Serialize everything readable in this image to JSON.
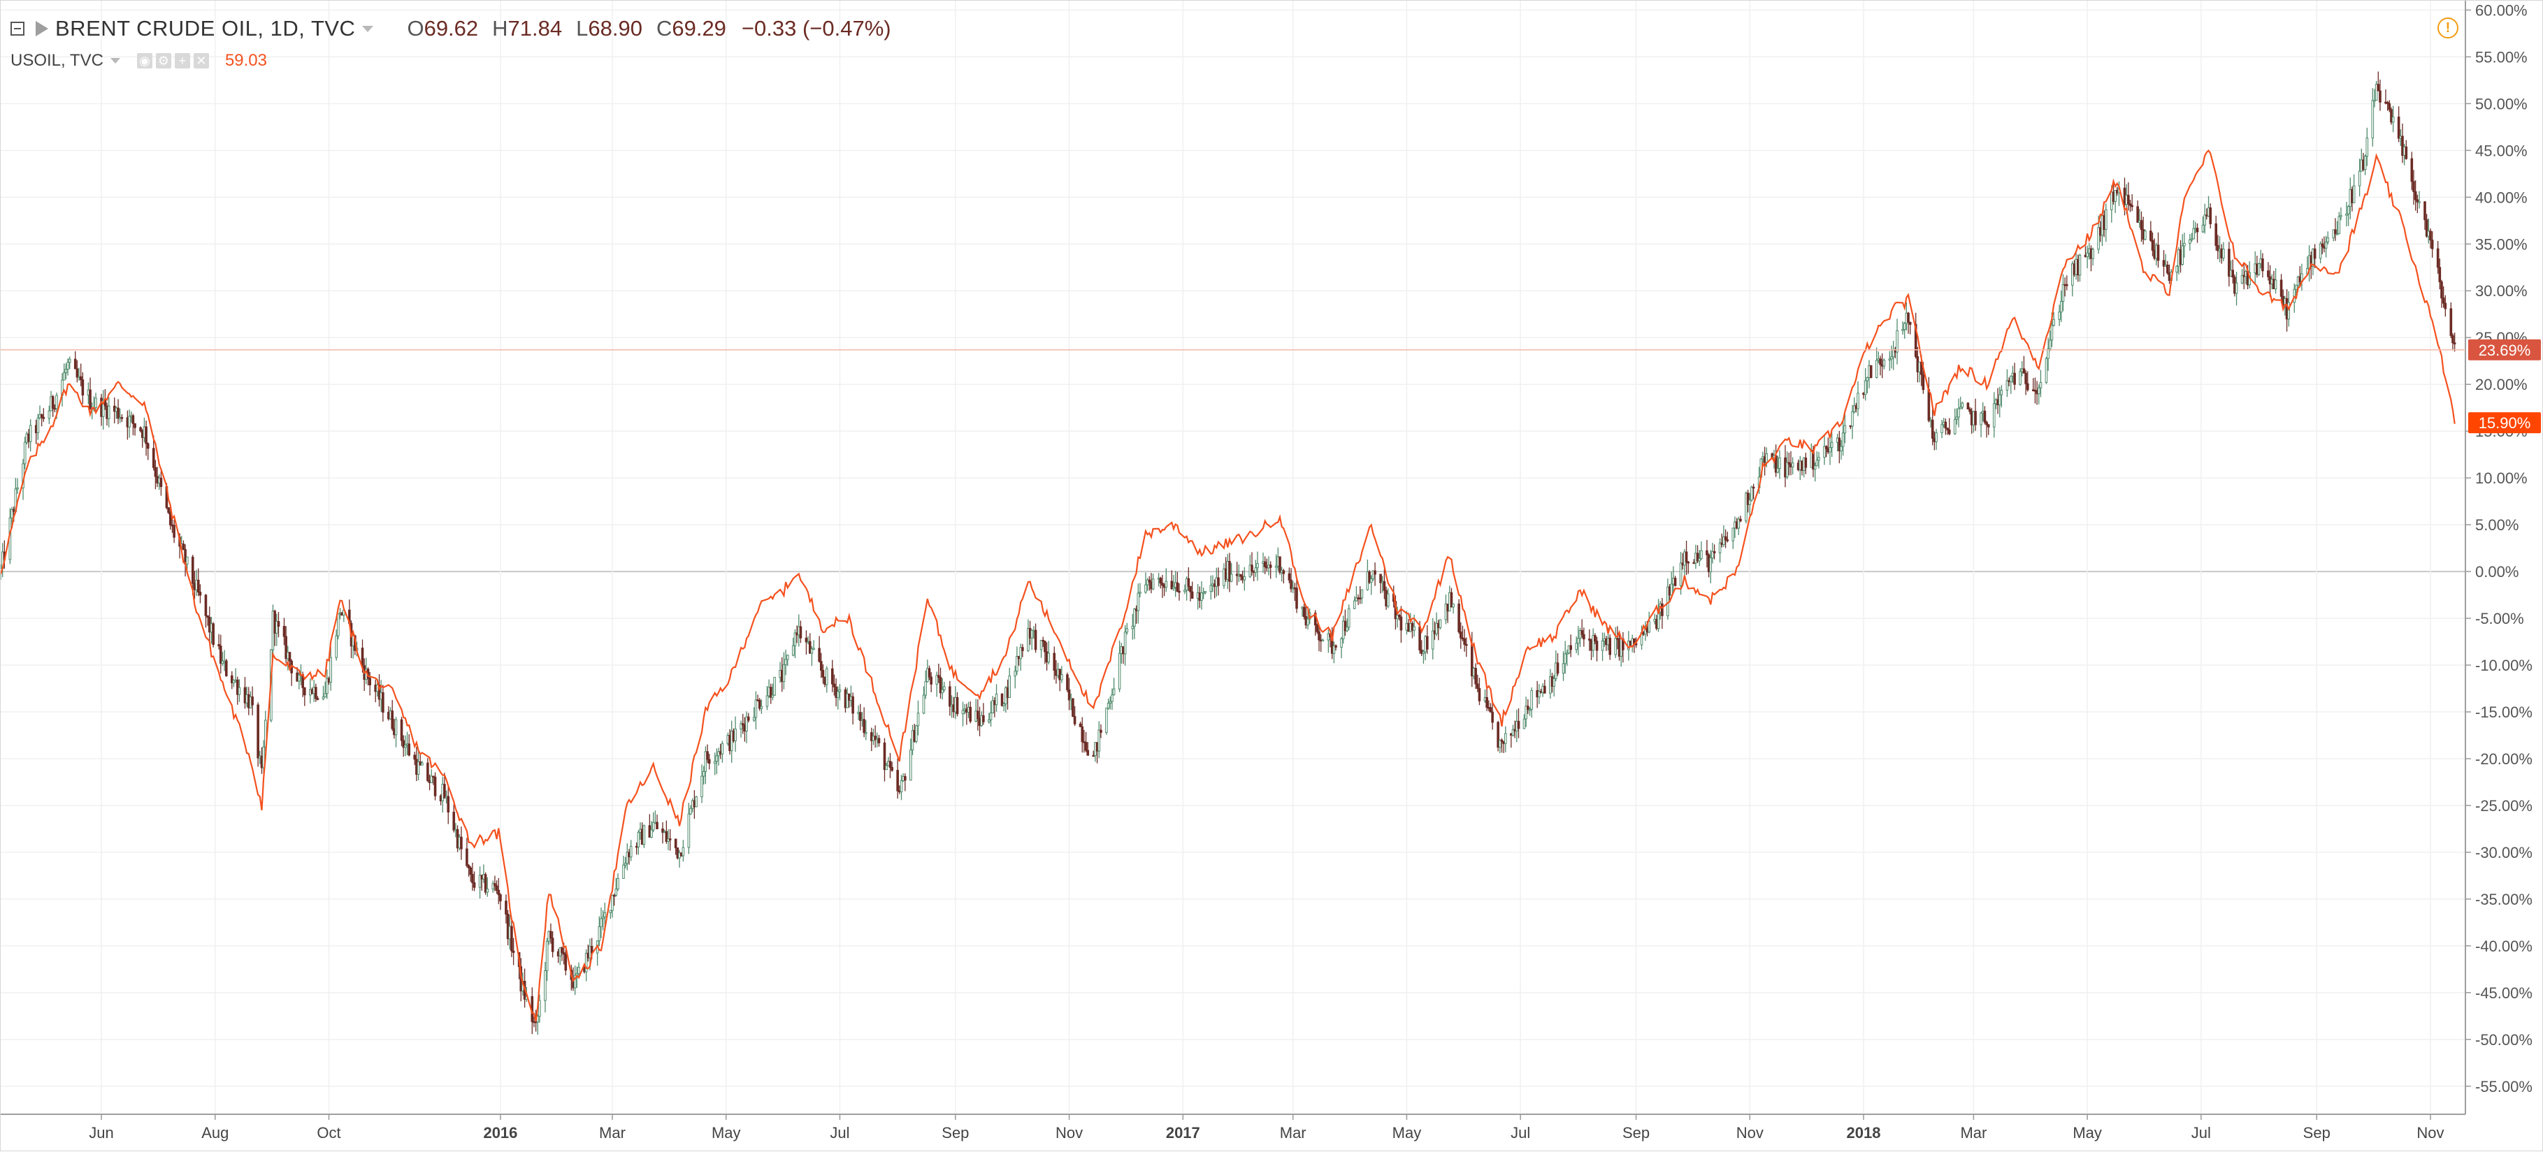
{
  "legend": {
    "symbol_title": "BRENT CRUDE OIL, 1D, TVC",
    "ohlc": [
      {
        "k": "O",
        "v": "69.62"
      },
      {
        "k": "H",
        "v": "71.84"
      },
      {
        "k": "L",
        "v": "68.90"
      },
      {
        "k": "C",
        "v": "69.29"
      }
    ],
    "change": "−0.33 (−0.47%)",
    "compare_symbol": "USOIL, TVC",
    "compare_value": "59.03"
  },
  "icons": [
    "collapse-icon",
    "flag-icon",
    "eye-icon",
    "settings-icon",
    "plus-icon",
    "close-icon",
    "warning-icon"
  ],
  "colors": {
    "up_candle_body": "#ffffff",
    "up_candle_wick": "#4f8a6b",
    "down_candle": "#6b2b24",
    "compare_line": "#f4511e",
    "grid": "#f0f0f0",
    "zero_line": "#c8c8c8",
    "price_line": "#f5b7a7",
    "brent_badge": "#d9553f",
    "usoil_badge": "#ff4500"
  },
  "chart_data": {
    "type": "line",
    "y_axis_unit": "%",
    "ylim": [
      -58,
      61
    ],
    "y_ticks": [
      "60.00%",
      "55.00%",
      "50.00%",
      "45.00%",
      "40.00%",
      "35.00%",
      "30.00%",
      "25.00%",
      "20.00%",
      "15.00%",
      "10.00%",
      "5.00%",
      "0.00%",
      "-5.00%",
      "-10.00%",
      "-15.00%",
      "-20.00%",
      "-25.00%",
      "-30.00%",
      "-35.00%",
      "-40.00%",
      "-45.00%",
      "-50.00%",
      "-55.00%"
    ],
    "x_ticks": [
      {
        "label": "Jun",
        "date": "2015-06-01",
        "bold": false
      },
      {
        "label": "Aug",
        "date": "2015-08-01",
        "bold": false
      },
      {
        "label": "Oct",
        "date": "2015-10-01",
        "bold": false
      },
      {
        "label": "2016",
        "date": "2016-01-01",
        "bold": true
      },
      {
        "label": "Mar",
        "date": "2016-03-01",
        "bold": false
      },
      {
        "label": "May",
        "date": "2016-05-01",
        "bold": false
      },
      {
        "label": "Jul",
        "date": "2016-07-01",
        "bold": false
      },
      {
        "label": "Sep",
        "date": "2016-09-01",
        "bold": false
      },
      {
        "label": "Nov",
        "date": "2016-11-01",
        "bold": false
      },
      {
        "label": "2017",
        "date": "2017-01-01",
        "bold": true
      },
      {
        "label": "Mar",
        "date": "2017-03-01",
        "bold": false
      },
      {
        "label": "May",
        "date": "2017-05-01",
        "bold": false
      },
      {
        "label": "Jul",
        "date": "2017-07-01",
        "bold": false
      },
      {
        "label": "Sep",
        "date": "2017-09-01",
        "bold": false
      },
      {
        "label": "Nov",
        "date": "2017-11-01",
        "bold": false
      },
      {
        "label": "2018",
        "date": "2018-01-01",
        "bold": true
      },
      {
        "label": "Mar",
        "date": "2018-03-01",
        "bold": false
      },
      {
        "label": "May",
        "date": "2018-05-01",
        "bold": false
      },
      {
        "label": "Jul",
        "date": "2018-07-01",
        "bold": false
      },
      {
        "label": "Sep",
        "date": "2018-09-01",
        "bold": false
      },
      {
        "label": "Nov",
        "date": "2018-11-01",
        "bold": false
      }
    ],
    "x_range": [
      "2015-04-08",
      "2018-11-16"
    ],
    "series": [
      {
        "name": "BRENT CRUDE OIL, 1D, TVC",
        "style": "candles",
        "last_label": "23.69%",
        "last_value": 23.69,
        "points": [
          [
            "2015-04-08",
            0
          ],
          [
            "2015-04-22",
            14
          ],
          [
            "2015-05-06",
            18
          ],
          [
            "2015-05-14",
            22
          ],
          [
            "2015-05-27",
            18
          ],
          [
            "2015-06-10",
            17
          ],
          [
            "2015-06-24",
            15
          ],
          [
            "2015-07-08",
            5
          ],
          [
            "2015-07-22",
            -2
          ],
          [
            "2015-08-05",
            -10
          ],
          [
            "2015-08-20",
            -14
          ],
          [
            "2015-08-26",
            -22
          ],
          [
            "2015-09-01",
            -5
          ],
          [
            "2015-09-15",
            -12
          ],
          [
            "2015-09-29",
            -13
          ],
          [
            "2015-10-07",
            -4
          ],
          [
            "2015-10-21",
            -11
          ],
          [
            "2015-11-04",
            -16
          ],
          [
            "2015-11-18",
            -21
          ],
          [
            "2015-12-02",
            -24
          ],
          [
            "2015-12-16",
            -33
          ],
          [
            "2015-12-31",
            -34
          ],
          [
            "2016-01-12",
            -44
          ],
          [
            "2016-01-20",
            -49
          ],
          [
            "2016-01-27",
            -39
          ],
          [
            "2016-02-10",
            -44
          ],
          [
            "2016-02-24",
            -38
          ],
          [
            "2016-03-09",
            -30
          ],
          [
            "2016-03-23",
            -27
          ],
          [
            "2016-04-06",
            -30
          ],
          [
            "2016-04-20",
            -20
          ],
          [
            "2016-05-04",
            -18
          ],
          [
            "2016-05-18",
            -14
          ],
          [
            "2016-06-01",
            -11
          ],
          [
            "2016-06-08",
            -6
          ],
          [
            "2016-06-22",
            -11
          ],
          [
            "2016-07-06",
            -14
          ],
          [
            "2016-07-20",
            -18
          ],
          [
            "2016-08-02",
            -24
          ],
          [
            "2016-08-17",
            -11
          ],
          [
            "2016-08-31",
            -14
          ],
          [
            "2016-09-14",
            -16
          ],
          [
            "2016-09-28",
            -13
          ],
          [
            "2016-10-10",
            -6
          ],
          [
            "2016-10-26",
            -11
          ],
          [
            "2016-11-14",
            -20
          ],
          [
            "2016-11-30",
            -8
          ],
          [
            "2016-12-12",
            -1
          ],
          [
            "2016-12-28",
            -1
          ],
          [
            "2017-01-11",
            -3
          ],
          [
            "2017-01-25",
            0
          ],
          [
            "2017-02-08",
            0
          ],
          [
            "2017-02-22",
            1
          ],
          [
            "2017-03-08",
            -5
          ],
          [
            "2017-03-22",
            -8
          ],
          [
            "2017-04-05",
            -3
          ],
          [
            "2017-04-12",
            0
          ],
          [
            "2017-04-26",
            -5
          ],
          [
            "2017-05-10",
            -8
          ],
          [
            "2017-05-24",
            -3
          ],
          [
            "2017-06-07",
            -12
          ],
          [
            "2017-06-21",
            -19
          ],
          [
            "2017-07-05",
            -14
          ],
          [
            "2017-07-19",
            -11
          ],
          [
            "2017-08-02",
            -7
          ],
          [
            "2017-08-16",
            -8
          ],
          [
            "2017-08-30",
            -8
          ],
          [
            "2017-09-13",
            -5
          ],
          [
            "2017-09-27",
            2
          ],
          [
            "2017-10-11",
            1
          ],
          [
            "2017-10-25",
            5
          ],
          [
            "2017-11-08",
            12
          ],
          [
            "2017-11-22",
            11
          ],
          [
            "2017-12-06",
            12
          ],
          [
            "2017-12-20",
            14
          ],
          [
            "2018-01-03",
            21
          ],
          [
            "2018-01-17",
            24
          ],
          [
            "2018-01-25",
            27
          ],
          [
            "2018-02-08",
            14
          ],
          [
            "2018-02-22",
            17
          ],
          [
            "2018-03-08",
            16
          ],
          [
            "2018-03-22",
            21
          ],
          [
            "2018-04-05",
            20
          ],
          [
            "2018-04-19",
            31
          ],
          [
            "2018-05-03",
            34
          ],
          [
            "2018-05-17",
            41
          ],
          [
            "2018-05-31",
            36
          ],
          [
            "2018-06-14",
            32
          ],
          [
            "2018-06-21",
            34
          ],
          [
            "2018-07-05",
            38
          ],
          [
            "2018-07-19",
            30
          ],
          [
            "2018-08-02",
            33
          ],
          [
            "2018-08-16",
            28
          ],
          [
            "2018-08-30",
            34
          ],
          [
            "2018-09-13",
            37
          ],
          [
            "2018-09-27",
            44
          ],
          [
            "2018-10-03",
            52
          ],
          [
            "2018-10-17",
            45
          ],
          [
            "2018-10-31",
            36
          ],
          [
            "2018-11-09",
            28
          ],
          [
            "2018-11-14",
            23.69
          ]
        ]
      },
      {
        "name": "USOIL, TVC",
        "style": "line",
        "last_label": "15.90%",
        "last_value": 15.9,
        "points": [
          [
            "2015-04-08",
            0
          ],
          [
            "2015-04-22",
            11
          ],
          [
            "2015-05-06",
            16
          ],
          [
            "2015-05-14",
            20
          ],
          [
            "2015-05-27",
            17
          ],
          [
            "2015-06-10",
            20
          ],
          [
            "2015-06-24",
            18
          ],
          [
            "2015-07-08",
            7
          ],
          [
            "2015-07-22",
            -4
          ],
          [
            "2015-08-05",
            -12
          ],
          [
            "2015-08-20",
            -20
          ],
          [
            "2015-08-26",
            -25
          ],
          [
            "2015-09-01",
            -9
          ],
          [
            "2015-09-15",
            -11
          ],
          [
            "2015-09-29",
            -11
          ],
          [
            "2015-10-07",
            -3
          ],
          [
            "2015-10-21",
            -11
          ],
          [
            "2015-11-04",
            -13
          ],
          [
            "2015-11-18",
            -19
          ],
          [
            "2015-12-02",
            -22
          ],
          [
            "2015-12-16",
            -29
          ],
          [
            "2015-12-31",
            -28
          ],
          [
            "2016-01-12",
            -43
          ],
          [
            "2016-01-20",
            -48
          ],
          [
            "2016-01-27",
            -34
          ],
          [
            "2016-02-10",
            -44
          ],
          [
            "2016-02-24",
            -40
          ],
          [
            "2016-03-09",
            -25
          ],
          [
            "2016-03-23",
            -21
          ],
          [
            "2016-04-06",
            -27
          ],
          [
            "2016-04-20",
            -15
          ],
          [
            "2016-05-04",
            -11
          ],
          [
            "2016-05-18",
            -4
          ],
          [
            "2016-06-01",
            -2
          ],
          [
            "2016-06-08",
            0
          ],
          [
            "2016-06-22",
            -6
          ],
          [
            "2016-07-06",
            -5
          ],
          [
            "2016-07-20",
            -13
          ],
          [
            "2016-08-02",
            -20
          ],
          [
            "2016-08-17",
            -3
          ],
          [
            "2016-08-31",
            -11
          ],
          [
            "2016-09-14",
            -13
          ],
          [
            "2016-09-28",
            -9
          ],
          [
            "2016-10-10",
            -1
          ],
          [
            "2016-10-26",
            -7
          ],
          [
            "2016-11-14",
            -15
          ],
          [
            "2016-11-30",
            -5
          ],
          [
            "2016-12-12",
            4
          ],
          [
            "2016-12-28",
            5
          ],
          [
            "2017-01-11",
            2
          ],
          [
            "2017-01-25",
            3
          ],
          [
            "2017-02-08",
            4
          ],
          [
            "2017-02-22",
            6
          ],
          [
            "2017-03-08",
            -4
          ],
          [
            "2017-03-22",
            -7
          ],
          [
            "2017-04-05",
            1
          ],
          [
            "2017-04-12",
            5
          ],
          [
            "2017-04-26",
            -4
          ],
          [
            "2017-05-10",
            -6
          ],
          [
            "2017-05-24",
            2
          ],
          [
            "2017-06-07",
            -9
          ],
          [
            "2017-06-21",
            -16
          ],
          [
            "2017-07-05",
            -8
          ],
          [
            "2017-07-19",
            -7
          ],
          [
            "2017-08-02",
            -2
          ],
          [
            "2017-08-16",
            -6
          ],
          [
            "2017-08-30",
            -8
          ],
          [
            "2017-09-13",
            -4
          ],
          [
            "2017-09-27",
            -1
          ],
          [
            "2017-10-11",
            -3
          ],
          [
            "2017-10-25",
            0
          ],
          [
            "2017-11-08",
            11
          ],
          [
            "2017-11-22",
            14
          ],
          [
            "2017-12-06",
            13
          ],
          [
            "2017-12-20",
            16
          ],
          [
            "2018-01-03",
            24
          ],
          [
            "2018-01-17",
            28
          ],
          [
            "2018-01-25",
            29
          ],
          [
            "2018-02-08",
            17
          ],
          [
            "2018-02-22",
            22
          ],
          [
            "2018-03-08",
            20
          ],
          [
            "2018-03-22",
            27
          ],
          [
            "2018-04-05",
            22
          ],
          [
            "2018-04-19",
            33
          ],
          [
            "2018-05-03",
            36
          ],
          [
            "2018-05-17",
            42
          ],
          [
            "2018-05-31",
            32
          ],
          [
            "2018-06-14",
            30
          ],
          [
            "2018-06-21",
            39
          ],
          [
            "2018-07-05",
            45
          ],
          [
            "2018-07-19",
            34
          ],
          [
            "2018-08-02",
            30
          ],
          [
            "2018-08-16",
            28
          ],
          [
            "2018-08-30",
            33
          ],
          [
            "2018-09-13",
            32
          ],
          [
            "2018-09-27",
            40
          ],
          [
            "2018-10-03",
            44
          ],
          [
            "2018-10-17",
            37
          ],
          [
            "2018-10-31",
            28
          ],
          [
            "2018-11-09",
            21
          ],
          [
            "2018-11-14",
            15.9
          ]
        ]
      }
    ]
  }
}
